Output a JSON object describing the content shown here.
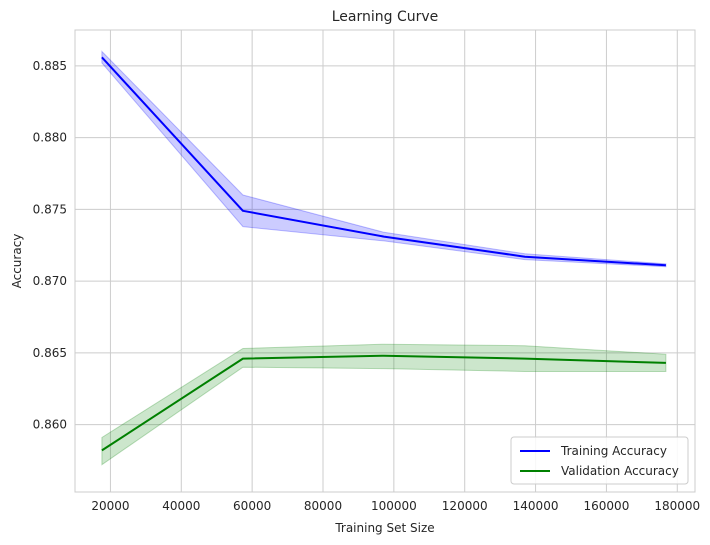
{
  "chart_data": {
    "type": "line",
    "title": "Learning Curve",
    "xlabel": "Training Set Size",
    "ylabel": "Accuracy",
    "x": [
      17600,
      57400,
      97200,
      137000,
      176800
    ],
    "xlim": [
      10000,
      185000
    ],
    "ylim": [
      0.8553,
      0.8875
    ],
    "xticks": [
      20000,
      40000,
      60000,
      80000,
      100000,
      120000,
      140000,
      160000,
      180000
    ],
    "yticks": [
      0.86,
      0.865,
      0.87,
      0.875,
      0.88,
      0.885
    ],
    "yticks_labels": [
      "0.860",
      "0.865",
      "0.870",
      "0.875",
      "0.880",
      "0.885"
    ],
    "grid": true,
    "legend_position": "bottom-right",
    "series": [
      {
        "name": "Training Accuracy",
        "color": "#0000ff",
        "fill_color": "#0000ff",
        "values": [
          0.8856,
          0.8749,
          0.8731,
          0.8717,
          0.8711
        ],
        "lower": [
          0.8852,
          0.8738,
          0.8728,
          0.8715,
          0.871
        ],
        "upper": [
          0.886,
          0.876,
          0.8734,
          0.8719,
          0.8712
        ]
      },
      {
        "name": "Validation Accuracy",
        "color": "#008000",
        "fill_color": "#008000",
        "values": [
          0.8582,
          0.8646,
          0.8648,
          0.8646,
          0.8643
        ],
        "lower": [
          0.8572,
          0.864,
          0.8639,
          0.8637,
          0.8637
        ],
        "upper": [
          0.8591,
          0.8653,
          0.8656,
          0.8655,
          0.8649
        ]
      }
    ]
  }
}
